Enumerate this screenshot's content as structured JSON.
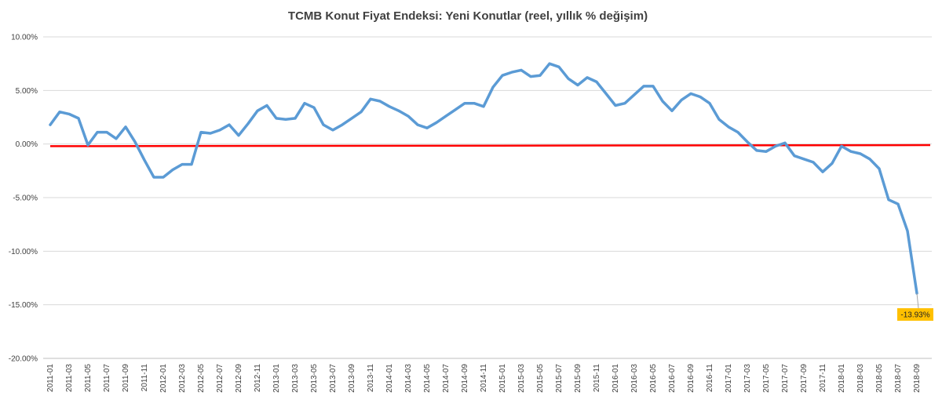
{
  "chart_data": {
    "type": "line",
    "title": "TCMB Konut Fiyat Endeksi: Yeni Konutlar (reel, yıllık % değişim)",
    "xlabel": "",
    "ylabel": "",
    "ylim": [
      -20,
      10
    ],
    "y_ticks": [
      10,
      5,
      0,
      -5,
      -10,
      -15,
      -20
    ],
    "y_tick_labels": [
      "10.00%",
      "5.00%",
      "0.00%",
      "-5.00%",
      "-10.00%",
      "-15.00%",
      "-20.00%"
    ],
    "grid": true,
    "legend": "none",
    "x": [
      "2011-01",
      "2011-02",
      "2011-03",
      "2011-04",
      "2011-05",
      "2011-06",
      "2011-07",
      "2011-08",
      "2011-09",
      "2011-10",
      "2011-11",
      "2011-12",
      "2012-01",
      "2012-02",
      "2012-03",
      "2012-04",
      "2012-05",
      "2012-06",
      "2012-07",
      "2012-08",
      "2012-09",
      "2012-10",
      "2012-11",
      "2012-12",
      "2013-01",
      "2013-02",
      "2013-03",
      "2013-04",
      "2013-05",
      "2013-06",
      "2013-07",
      "2013-08",
      "2013-09",
      "2013-10",
      "2013-11",
      "2013-12",
      "2014-01",
      "2014-02",
      "2014-03",
      "2014-04",
      "2014-05",
      "2014-06",
      "2014-07",
      "2014-08",
      "2014-09",
      "2014-10",
      "2014-11",
      "2014-12",
      "2015-01",
      "2015-02",
      "2015-03",
      "2015-04",
      "2015-05",
      "2015-06",
      "2015-07",
      "2015-08",
      "2015-09",
      "2015-10",
      "2015-11",
      "2015-12",
      "2016-01",
      "2016-02",
      "2016-03",
      "2016-04",
      "2016-05",
      "2016-06",
      "2016-07",
      "2016-08",
      "2016-09",
      "2016-10",
      "2016-11",
      "2016-12",
      "2017-01",
      "2017-02",
      "2017-03",
      "2017-04",
      "2017-05",
      "2017-06",
      "2017-07",
      "2017-08",
      "2017-09",
      "2017-10",
      "2017-11",
      "2017-12",
      "2018-01",
      "2018-02",
      "2018-03",
      "2018-04",
      "2018-05",
      "2018-06",
      "2018-07",
      "2018-08",
      "2018-09"
    ],
    "x_tick_labels": [
      "2011-01",
      "2011-03",
      "2011-05",
      "2011-07",
      "2011-09",
      "2011-11",
      "2012-01",
      "2012-03",
      "2012-05",
      "2012-07",
      "2012-09",
      "2012-11",
      "2013-01",
      "2013-03",
      "2013-05",
      "2013-07",
      "2013-09",
      "2013-11",
      "2014-01",
      "2014-03",
      "2014-05",
      "2014-07",
      "2014-09",
      "2014-11",
      "2015-01",
      "2015-03",
      "2015-05",
      "2015-07",
      "2015-09",
      "2015-11",
      "2016-01",
      "2016-03",
      "2016-05",
      "2016-07",
      "2016-09",
      "2016-11",
      "2017-01",
      "2017-03",
      "2017-05",
      "2017-07",
      "2017-09",
      "2017-11",
      "2018-01",
      "2018-03",
      "2018-05",
      "2018-07",
      "2018-09"
    ],
    "series": [
      {
        "color": "#5b9bd5",
        "values": [
          1.8,
          3.0,
          2.8,
          2.4,
          -0.1,
          1.1,
          1.1,
          0.5,
          1.6,
          0.2,
          -1.5,
          -3.1,
          -3.1,
          -2.4,
          -1.9,
          -1.9,
          1.1,
          1.0,
          1.3,
          1.8,
          0.8,
          1.9,
          3.1,
          3.6,
          2.4,
          2.3,
          2.4,
          3.8,
          3.4,
          1.8,
          1.3,
          1.8,
          2.4,
          3.0,
          4.2,
          4.0,
          3.5,
          3.1,
          2.6,
          1.8,
          1.5,
          2.0,
          2.6,
          3.2,
          3.8,
          3.8,
          3.5,
          5.3,
          6.4,
          6.7,
          6.9,
          6.3,
          6.4,
          7.5,
          7.2,
          6.1,
          5.5,
          6.2,
          5.8,
          4.7,
          3.6,
          3.8,
          4.6,
          5.4,
          5.4,
          4.0,
          3.1,
          4.1,
          4.7,
          4.4,
          3.8,
          2.3,
          1.6,
          1.1,
          0.2,
          -0.6,
          -0.7,
          -0.2,
          0.1,
          -1.1,
          -1.4,
          -1.7,
          -2.6,
          -1.8,
          -0.2,
          -0.7,
          -0.9,
          -1.4,
          -2.3,
          -5.2,
          -5.6,
          -8.1,
          -13.93
        ]
      }
    ],
    "reference_line": {
      "color": "#ff0000",
      "y_start": -0.2,
      "y_end": -0.1
    },
    "annotation": {
      "text": "-13.93%",
      "at": "2018-09",
      "value": -13.93,
      "background": "#ffc000"
    }
  }
}
